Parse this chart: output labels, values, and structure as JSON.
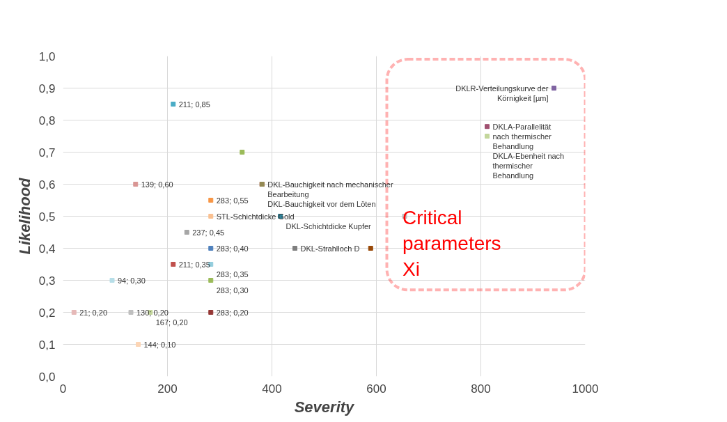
{
  "chart_data": {
    "type": "scatter",
    "xlabel": "Severity",
    "ylabel": "Likelihood",
    "x": [
      211,
      139,
      343,
      283,
      283,
      237,
      283,
      211,
      283,
      94,
      283,
      21,
      130,
      167,
      283,
      144,
      381,
      381,
      416,
      444,
      589,
      654,
      940,
      812,
      812
    ],
    "values": [
      0.85,
      0.6,
      0.7,
      0.55,
      0.5,
      0.45,
      0.4,
      0.35,
      0.35,
      0.3,
      0.3,
      0.2,
      0.2,
      0.2,
      0.2,
      0.1,
      0.6,
      0.6,
      0.5,
      0.4,
      0.4,
      0.5,
      0.9,
      0.78,
      0.75
    ],
    "colors": [
      "#4bacc6",
      "#d99694",
      "#9bbb59",
      "#f79646",
      "#fac090",
      "#a6a6a6",
      "#4f81bd",
      "#c0504d",
      "#93cddd",
      "#b7dee8",
      "#9bbb59",
      "#e6b9b8",
      "#bfbfbf",
      "#c3d69b",
      "#953735",
      "#fcd5b5",
      "#c0504d",
      "#948a54",
      "#31859c",
      "#7f7f7f",
      "#984807",
      "#bfbfbf",
      "#8064a2",
      "#a05070",
      "#c3d69b"
    ],
    "value_labels": [
      "211; 0,85",
      "139; 0,60",
      null,
      "283; 0,55",
      "STL-Schichtdicke Gold",
      "237; 0,45",
      "283; 0,40",
      "211; 0,35",
      "283; 0,35",
      "94; 0,30",
      "283; 0,30",
      "21; 0,20",
      "130; 0,20",
      "167; 0,20",
      "283; 0,20",
      "144; 0,10",
      "DKL-Bauchigkeit nach mechanischer Bearbeitung",
      "DKL-Bauchigkeit vor dem Löten",
      "DKL-Schichtdicke Kupfer",
      "DKL-Strahlloch D",
      null,
      null,
      "DKLR-Verteilungskurve der Körnigkeit [µm]",
      "DKLA-Parallelität nach thermischer Behandlung",
      "DKLA-Ebenheit nach thermischer Behandlung"
    ],
    "xlim": [
      0,
      1000
    ],
    "ylim": [
      0,
      1
    ],
    "xticks": [
      0,
      200,
      400,
      600,
      800,
      1000
    ],
    "yticks": [
      {
        "value": 0,
        "label": "0,0"
      },
      {
        "value": 0.1,
        "label": "0,1"
      },
      {
        "value": 0.2,
        "label": "0,2"
      },
      {
        "value": 0.3,
        "label": "0,3"
      },
      {
        "value": 0.4,
        "label": "0,4"
      },
      {
        "value": 0.5,
        "label": "0,5"
      },
      {
        "value": 0.6,
        "label": "0,6"
      },
      {
        "value": 0.7,
        "label": "0,7"
      },
      {
        "value": 0.8,
        "label": "0,8"
      },
      {
        "value": 0.9,
        "label": "0,9"
      },
      {
        "value": 1,
        "label": "1,0"
      }
    ],
    "grid": true,
    "marker": "square",
    "annotations": [
      "Critical parameters Xi"
    ]
  }
}
